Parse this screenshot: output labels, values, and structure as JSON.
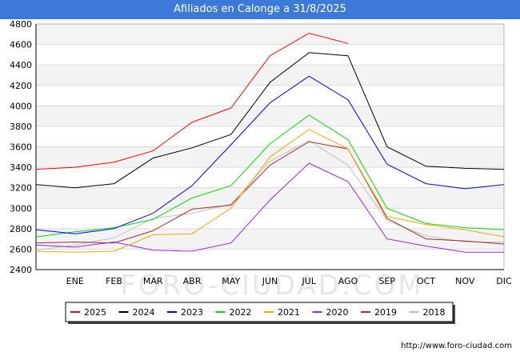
{
  "header": {
    "title": "Afiliados en Calonge a 31/8/2025"
  },
  "footer": {
    "url": "http://www.foro-ciudad.com"
  },
  "watermark": "FORO-CIUDAD.COM",
  "chart_data": {
    "type": "line",
    "title": "Afiliados en Calonge a 31/8/2025",
    "categories": [
      "",
      "ENE",
      "FEB",
      "MAR",
      "ABR",
      "MAY",
      "JUN",
      "JUL",
      "AGO",
      "SEP",
      "OCT",
      "NOV",
      "DIC"
    ],
    "ylim": [
      2400,
      4800
    ],
    "yticks": [
      2400,
      2600,
      2800,
      3000,
      3200,
      3400,
      3600,
      3800,
      4000,
      4200,
      4400,
      4600,
      4800
    ],
    "legend_position": "bottom",
    "series": [
      {
        "name": "2025",
        "color": "#ff0000",
        "values": [
          3380,
          3400,
          3450,
          3560,
          3840,
          3980,
          4490,
          4710,
          4610,
          null,
          null,
          null,
          null
        ]
      },
      {
        "name": "2024",
        "color": "#000000",
        "values": [
          3230,
          3200,
          3240,
          3490,
          3590,
          3720,
          4230,
          4520,
          4490,
          3600,
          3410,
          3390,
          3380
        ]
      },
      {
        "name": "2023",
        "color": "#0000ff",
        "values": [
          2790,
          2750,
          2800,
          2950,
          3220,
          3620,
          4030,
          4290,
          4060,
          3430,
          3240,
          3190,
          3230
        ]
      },
      {
        "name": "2022",
        "color": "#00dd00",
        "values": [
          2720,
          2770,
          2810,
          2890,
          3100,
          3220,
          3630,
          3910,
          3670,
          3000,
          2850,
          2810,
          2790
        ]
      },
      {
        "name": "2021",
        "color": "#ffa500",
        "values": [
          2580,
          2570,
          2580,
          2740,
          2750,
          3000,
          3500,
          3770,
          3580,
          2920,
          2840,
          2790,
          2720
        ]
      },
      {
        "name": "2020",
        "color": "#a020f0",
        "values": [
          2640,
          2620,
          2670,
          2590,
          2580,
          2660,
          3080,
          3440,
          3260,
          2700,
          2630,
          2570,
          2570
        ]
      },
      {
        "name": "2019",
        "color": "#a52a2a",
        "values": [
          2660,
          2670,
          2660,
          2780,
          2990,
          3030,
          3420,
          3650,
          3580,
          2900,
          2700,
          2680,
          2650
        ]
      },
      {
        "name": "2018",
        "color": "#c0c0c0",
        "values": [
          2590,
          2640,
          2710,
          2900,
          2950,
          3040,
          3460,
          3660,
          3420,
          2880,
          2730,
          2670,
          2670
        ]
      }
    ]
  }
}
